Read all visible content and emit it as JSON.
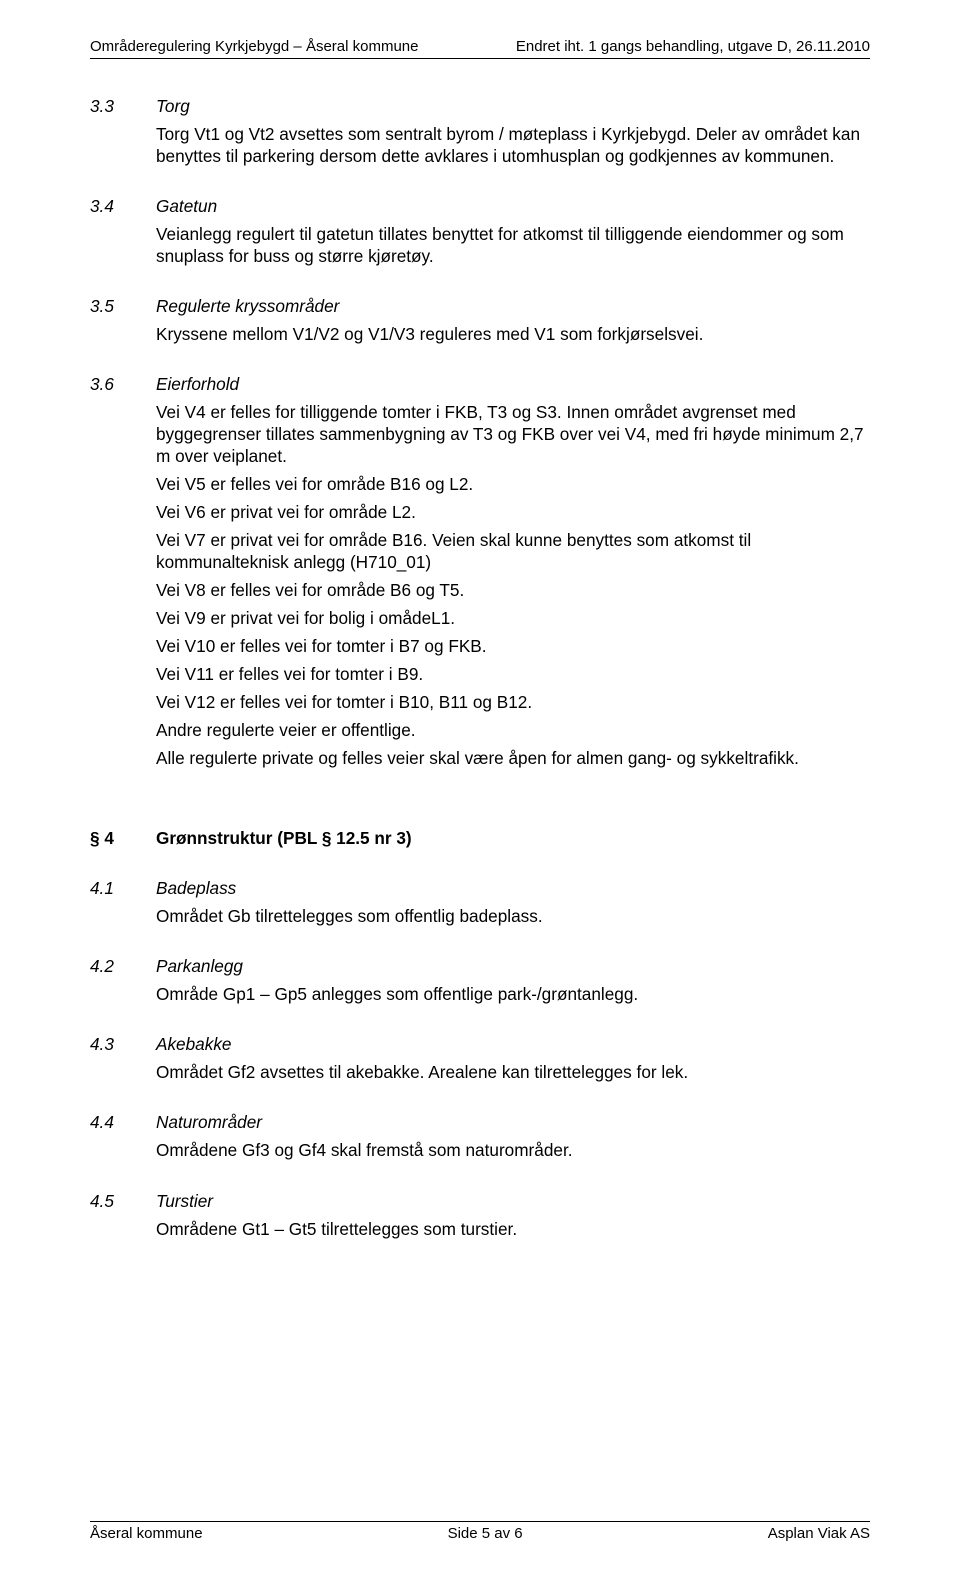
{
  "header": {
    "left": "Områderegulering Kyrkjebygd – Åseral kommune",
    "right": "Endret iht. 1 gangs behandling, utgave D, 26.11.2010"
  },
  "sections": {
    "s33": {
      "num": "3.3",
      "title": "Torg",
      "p1": "Torg Vt1 og Vt2 avsettes som sentralt byrom / møteplass i Kyrkjebygd. Deler av området kan benyttes til parkering dersom dette avklares i utomhusplan og godkjennes av kommunen."
    },
    "s34": {
      "num": "3.4",
      "title": "Gatetun",
      "p1": "Veianlegg regulert til gatetun tillates benyttet for atkomst til tilliggende eiendommer og som snuplass for buss og større kjøretøy."
    },
    "s35": {
      "num": "3.5",
      "title": "Regulerte kryssområder",
      "p1": "Kryssene mellom V1/V2 og V1/V3 reguleres med V1 som forkjørselsvei."
    },
    "s36": {
      "num": "3.6",
      "title": "Eierforhold",
      "p1": "Vei V4 er felles for tilliggende tomter i FKB, T3 og S3. Innen området avgrenset med byggegrenser tillates sammenbygning av T3 og FKB over vei V4, med fri høyde minimum 2,7 m over veiplanet.",
      "p2": "Vei V5 er felles vei for område B16 og L2.",
      "p3": "Vei V6 er privat vei for område L2.",
      "p4": "Vei V7 er privat vei for område B16. Veien skal kunne benyttes som atkomst til kommunalteknisk anlegg (H710_01)",
      "p5": "Vei V8 er felles vei for område B6 og T5.",
      "p6": "Vei V9 er privat vei for bolig i omådeL1.",
      "p7": "Vei V10 er felles vei for tomter i B7 og FKB.",
      "p8": "Vei V11 er felles vei for tomter i B9.",
      "p9": "Vei V12 er felles vei for tomter i B10, B11 og B12.",
      "p10": "Andre regulerte veier er offentlige.",
      "p11": "Alle regulerte private og felles veier skal være åpen for almen gang- og sykkeltrafikk."
    },
    "s4": {
      "num": "§ 4",
      "title": "Grønnstruktur (PBL § 12.5 nr 3)"
    },
    "s41": {
      "num": "4.1",
      "title": "Badeplass",
      "p1": "Området Gb tilrettelegges som offentlig badeplass."
    },
    "s42": {
      "num": "4.2",
      "title": "Parkanlegg",
      "p1": "Område Gp1 – Gp5 anlegges som offentlige park-/grøntanlegg."
    },
    "s43": {
      "num": "4.3",
      "title": "Akebakke",
      "p1": "Området Gf2 avsettes til akebakke. Arealene kan tilrettelegges for lek."
    },
    "s44": {
      "num": "4.4",
      "title": "Naturområder",
      "p1": "Områdene Gf3 og Gf4 skal fremstå som naturområder."
    },
    "s45": {
      "num": "4.5",
      "title": "Turstier",
      "p1": "Områdene Gt1 – Gt5 tilrettelegges som turstier."
    }
  },
  "footer": {
    "left": "Åseral kommune",
    "center": "Side 5 av 6",
    "right": "Asplan Viak AS"
  }
}
